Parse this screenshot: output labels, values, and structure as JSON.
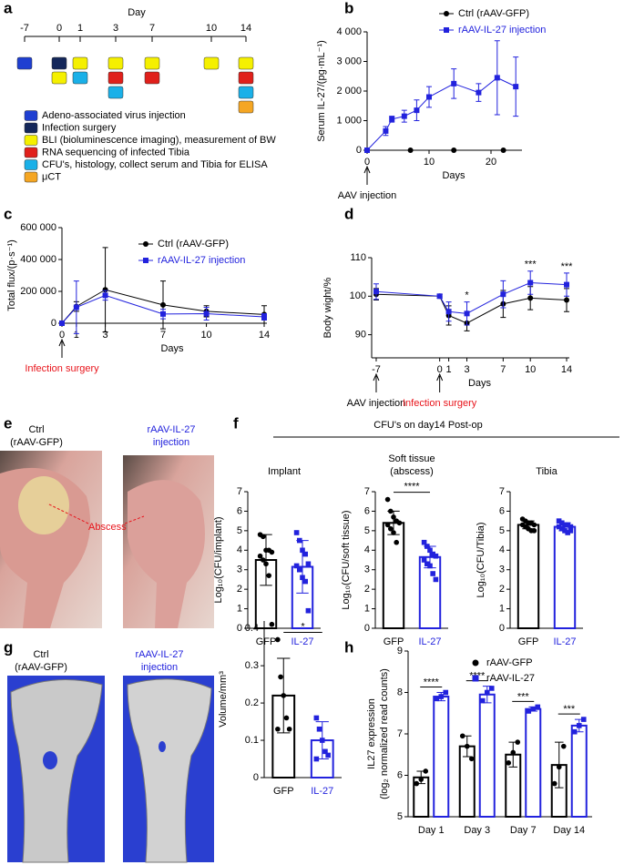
{
  "panel_labels": [
    "a",
    "b",
    "c",
    "d",
    "e",
    "f",
    "g",
    "h"
  ],
  "timeline": {
    "title": "Day",
    "days": [
      -7,
      0,
      1,
      3,
      7,
      10,
      14
    ],
    "legend": [
      {
        "color": "#1f3fd1",
        "label": "Adeno-associated virus injection"
      },
      {
        "color": "#14275a",
        "label": "Infection surgery"
      },
      {
        "color": "#f5f000",
        "label": "BLI (bioluminescence imaging), measurement of BW"
      },
      {
        "color": "#e0201b",
        "label": "RNA sequencing of infected Tibia"
      },
      {
        "color": "#1ab0e8",
        "label": "CFU's, histology, collect serum and Tibia for ELISA"
      },
      {
        "color": "#f5a623",
        "label": "μCT"
      }
    ],
    "schedule": [
      [
        0
      ],
      [
        1,
        2
      ],
      [
        2,
        4
      ],
      [
        2,
        3,
        4
      ],
      [
        2,
        3
      ],
      [
        2
      ],
      [
        2,
        3,
        4,
        5
      ]
    ]
  },
  "panel_e": {
    "ctrl": [
      "Ctrl",
      "(rAAV-GFP)"
    ],
    "treated": [
      "rAAV-IL-27",
      "injection"
    ],
    "abscess": "Abscess"
  },
  "panel_f": {
    "title": "CFU's on day14 Post-op"
  },
  "panel_g": {
    "ctrl": [
      "Ctrl",
      "(rAAV-GFP)"
    ],
    "treated": [
      "rAAV-IL-27",
      "injection"
    ]
  },
  "chart_data": [
    {
      "type": "line",
      "ylabel": [
        "Serum IL-27/(pg·mL⁻¹)"
      ],
      "xlabel": "Days",
      "xlim": [
        0,
        25
      ],
      "xticks": [
        0,
        10,
        20
      ],
      "ylim": [
        0,
        4000
      ],
      "yticks": [
        0,
        {
          "value": 1000,
          "label": "1 000"
        },
        {
          "value": 2000,
          "label": "2 000"
        },
        {
          "value": 3000,
          "label": "3 000"
        },
        {
          "value": 4000,
          "label": "4 000"
        }
      ],
      "series": [
        {
          "name": "Ctrl (rAAV-GFP)",
          "color": "#000000",
          "marker": "circle",
          "x": [
            0,
            7,
            14,
            22
          ],
          "values": [
            0,
            0,
            0,
            0
          ]
        },
        {
          "name": "rAAV-IL-27 injection",
          "color": "#2222dd",
          "marker": "square",
          "x": [
            0,
            3,
            4,
            6,
            8,
            10,
            14,
            18,
            21,
            24
          ],
          "values": [
            0,
            650,
            1050,
            1150,
            1350,
            1800,
            2250,
            1950,
            2450,
            2150
          ],
          "errors": [
            0,
            150,
            100,
            200,
            350,
            350,
            500,
            300,
            1250,
            1000
          ]
        }
      ],
      "markers": [
        {
          "x": 0,
          "text": "AAV injection",
          "color": "#000000"
        }
      ]
    },
    {
      "type": "line",
      "ylabel": [
        "Total flux/(p·s⁻¹)"
      ],
      "xlabel": "Days",
      "xlim": [
        0,
        14
      ],
      "xticks": [
        0,
        1,
        3,
        7,
        10,
        14
      ],
      "ylim": [
        0,
        600000
      ],
      "yticks": [
        0,
        {
          "value": 200000,
          "label": "200 000"
        },
        {
          "value": 400000,
          "label": "400 000"
        },
        {
          "value": 600000,
          "label": "600 000"
        }
      ],
      "series": [
        {
          "name": "Ctrl (rAAV-GFP)",
          "color": "#000000",
          "marker": "circle",
          "x": [
            0,
            1,
            3,
            7,
            10,
            14
          ],
          "values": [
            0,
            105000,
            210000,
            115000,
            75000,
            55000
          ],
          "errors": [
            0,
            30000,
            265000,
            150000,
            35000,
            55000
          ]
        },
        {
          "name": "rAAV-IL-27 injection",
          "color": "#2222dd",
          "marker": "square",
          "x": [
            0,
            1,
            3,
            7,
            10,
            14
          ],
          "values": [
            0,
            100000,
            175000,
            58000,
            60000,
            40000
          ],
          "errors": [
            0,
            165000,
            30000,
            30000,
            40000,
            20000
          ]
        }
      ],
      "markers": [
        {
          "x": 0,
          "text": "Infection surgery",
          "color": "#e8141b"
        }
      ]
    },
    {
      "type": "line",
      "ylabel": [
        "Body wight/%"
      ],
      "xlabel": "Days",
      "xlim": [
        -7.5,
        14.3
      ],
      "xticks": [
        -7,
        0,
        1,
        3,
        7,
        10,
        14
      ],
      "ylim": [
        84,
        110
      ],
      "yticks": [
        90,
        100,
        110
      ],
      "series": [
        {
          "color": "#000000",
          "marker": "circle",
          "x": [
            -7,
            0,
            1,
            3,
            7,
            10,
            14
          ],
          "values": [
            100.5,
            100,
            95,
            93,
            98,
            99.5,
            99
          ],
          "errors": [
            1.5,
            0.5,
            2.5,
            2,
            3.5,
            3,
            3
          ]
        },
        {
          "color": "#2222dd",
          "marker": "square",
          "x": [
            -7,
            0,
            1,
            3,
            7,
            10,
            14
          ],
          "values": [
            101.2,
            100,
            96,
            95.5,
            100.5,
            103.5,
            103
          ],
          "errors": [
            2,
            0.5,
            2.5,
            3,
            3.5,
            3,
            3
          ]
        }
      ],
      "significance": [
        {
          "x": 3,
          "text": "*"
        },
        {
          "x": 10,
          "text": "***"
        },
        {
          "x": 14,
          "text": "***"
        }
      ],
      "markers": [
        {
          "x": -7,
          "text": "AAV injection",
          "color": "#000000"
        },
        {
          "x": 0,
          "text": "Infection surgery",
          "color": "#e8141b"
        }
      ]
    },
    {
      "type": "bar",
      "subtitle": [
        "Implant"
      ],
      "ylabel": [
        "Log₁₀(CFU/implant)"
      ],
      "categories": [
        "GFP",
        "IL-27"
      ],
      "colors": [
        "#000000",
        "#2222dd"
      ],
      "point_markers": [
        "circle",
        "square"
      ],
      "values": [
        3.5,
        3.15
      ],
      "errors": [
        1.3,
        1.35
      ],
      "points": [
        [
          4.8,
          4.7,
          4.0,
          4.0,
          3.9,
          3.7,
          3.5,
          3.3,
          2.7,
          0.2
        ],
        [
          4.9,
          4.5,
          4.0,
          3.8,
          3.3,
          3.2,
          3.0,
          2.6,
          2.4,
          0.9
        ]
      ],
      "ylim": [
        0,
        7
      ],
      "yticks": [
        0,
        1,
        2,
        3,
        4,
        5,
        6,
        7
      ]
    },
    {
      "type": "bar",
      "subtitle": [
        "Soft tissue",
        "(abscess)"
      ],
      "ylabel": [
        "Log₁₀(CFU/soft tissue)"
      ],
      "categories": [
        "GFP",
        "IL-27"
      ],
      "colors": [
        "#000000",
        "#2222dd"
      ],
      "point_markers": [
        "circle",
        "square"
      ],
      "values": [
        5.4,
        3.65
      ],
      "errors": [
        0.6,
        0.55
      ],
      "points": [
        [
          6.6,
          6.0,
          5.7,
          5.5,
          5.4,
          5.3,
          5.1,
          4.9,
          4.4
        ],
        [
          4.4,
          4.2,
          4.0,
          3.8,
          3.7,
          3.5,
          3.3,
          3.2,
          2.8,
          2.5
        ]
      ],
      "ylim": [
        0,
        7
      ],
      "yticks": [
        0,
        1,
        2,
        3,
        4,
        5,
        6,
        7
      ],
      "significance": "****"
    },
    {
      "type": "bar",
      "subtitle": [
        "Tibia"
      ],
      "ylabel": [
        "Log₁₀(CFU/Tibia)"
      ],
      "categories": [
        "GFP",
        "IL-27"
      ],
      "colors": [
        "#000000",
        "#2222dd"
      ],
      "point_markers": [
        "circle",
        "square"
      ],
      "values": [
        5.3,
        5.2
      ],
      "errors": [
        0.2,
        0.2
      ],
      "points": [
        [
          5.6,
          5.5,
          5.4,
          5.4,
          5.3,
          5.3,
          5.2,
          5.1,
          5.0,
          5.0
        ],
        [
          5.5,
          5.4,
          5.3,
          5.3,
          5.2,
          5.2,
          5.1,
          5.0,
          4.9,
          5.0
        ]
      ],
      "ylim": [
        0,
        7
      ],
      "yticks": [
        0,
        1,
        2,
        3,
        4,
        5,
        6,
        7
      ]
    },
    {
      "type": "bar",
      "ylabel": [
        "Volume/mm³"
      ],
      "categories": [
        "GFP",
        "IL-27"
      ],
      "colors": [
        "#000000",
        "#2222dd"
      ],
      "point_markers": [
        "circle",
        "square"
      ],
      "values": [
        0.22,
        0.1
      ],
      "errors": [
        0.1,
        0.05
      ],
      "points": [
        [
          0.37,
          0.27,
          0.22,
          0.16,
          0.13,
          0.13
        ],
        [
          0.16,
          0.13,
          0.1,
          0.07,
          0.06,
          0.05
        ]
      ],
      "ylim": [
        0,
        0.42
      ],
      "yticks": [
        0,
        0.1,
        0.2,
        0.3,
        0.4
      ],
      "significance": "*"
    },
    {
      "type": "bar",
      "ylabel": [
        "IL27 expression",
        "(log₂ normalized read counts)"
      ],
      "categories": [
        "Day 1",
        "Day 3",
        "Day 7",
        "Day 14"
      ],
      "series": [
        {
          "name": "rAAV-GFP",
          "color": "#000000",
          "marker": "circle",
          "values": [
            5.95,
            6.7,
            6.5,
            6.25
          ],
          "errors": [
            0.15,
            0.25,
            0.3,
            0.55
          ],
          "points": [
            [
              5.8,
              5.9,
              6.1
            ],
            [
              6.95,
              6.7,
              6.4
            ],
            [
              6.3,
              6.55,
              6.8
            ],
            [
              5.8,
              6.2,
              6.7
            ]
          ]
        },
        {
          "name": "rAAV-IL-27",
          "color": "#2222dd",
          "marker": "square",
          "values": [
            7.9,
            7.95,
            7.6,
            7.2
          ],
          "errors": [
            0.1,
            0.2,
            0.05,
            0.15
          ],
          "points": [
            [
              7.85,
              7.9,
              8.0
            ],
            [
              7.8,
              8.0,
              8.1
            ],
            [
              7.55,
              7.6,
              7.65
            ],
            [
              7.05,
              7.2,
              7.35
            ]
          ]
        }
      ],
      "ylim": [
        5,
        9
      ],
      "yticks": [
        5,
        6,
        7,
        8,
        9
      ],
      "significance": [
        "****",
        "****",
        "***",
        "***"
      ]
    }
  ]
}
